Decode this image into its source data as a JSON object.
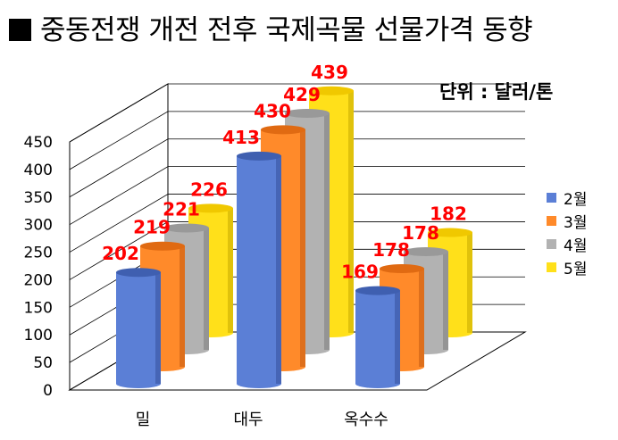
{
  "title": "중동전쟁 개전 전후 국제곡물 선물가격 동향",
  "unit_label": "단위 : 달러/톤",
  "colors": {
    "series": [
      "#5b7fd6",
      "#ff8a2a",
      "#b2b2b2",
      "#ffe01a"
    ],
    "series_dark": [
      "#34509c",
      "#c25a10",
      "#7c7c7c",
      "#c7a900"
    ],
    "series_top": [
      "#3f5fb0",
      "#e06a12",
      "#999999",
      "#f0c800"
    ],
    "data_label": "#ff0000"
  },
  "chart_data": {
    "type": "bar",
    "categories": [
      "밀",
      "대두",
      "옥수수"
    ],
    "series": [
      {
        "name": "2월",
        "values": [
          202,
          413,
          169
        ]
      },
      {
        "name": "3월",
        "values": [
          219,
          430,
          178
        ]
      },
      {
        "name": "4월",
        "values": [
          221,
          429,
          178
        ]
      },
      {
        "name": "5월",
        "values": [
          226,
          439,
          182
        ]
      }
    ],
    "y_ticks": [
      "0",
      "50",
      "100",
      "150",
      "200",
      "250",
      "300",
      "350",
      "400",
      "450"
    ],
    "ylim": [
      0,
      450
    ],
    "grid": true,
    "legend_position": "right",
    "three_d": true
  }
}
